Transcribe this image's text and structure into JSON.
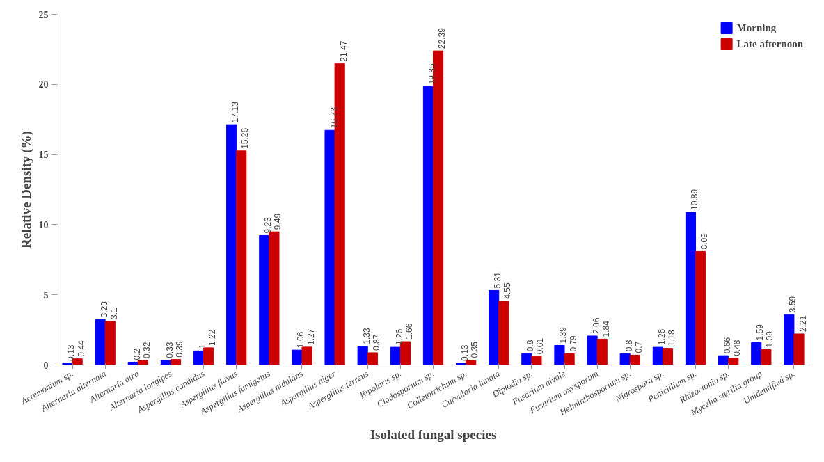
{
  "chart_data": {
    "type": "bar",
    "xlabel": "Isolated fungal species",
    "ylabel": "Relative Density (%)",
    "categories": [
      "Acremonium sp.",
      "Alternaria alternata",
      "Alternaria atra",
      "Alternaria longipes",
      "Aspergillus candidus",
      "Aspergillus flavus",
      "Aspergillus fumigatus",
      "Aspergillus nidulans",
      "Aspergillus niger",
      "Aspergillus terreus",
      "Bipolaris sp.",
      "Cladosporium sp.",
      "Colletotrichum sp.",
      "Curvularia lunata",
      "Diplodia sp.",
      "Fusarium nivale",
      "Fusarium oxysporum",
      "Helminthosporium sp.",
      "Nigrospora sp.",
      "Penicillium sp.",
      "Rhizoctonia sp.",
      "Mycelia sterilia group",
      "Unidentified sp."
    ],
    "series": [
      {
        "name": "Morning",
        "color": "#0000ff",
        "values": [
          0.13,
          3.23,
          0.2,
          0.33,
          1,
          17.13,
          9.23,
          1.06,
          16.73,
          1.33,
          1.26,
          19.85,
          0.13,
          5.31,
          0.8,
          1.39,
          2.06,
          0.8,
          1.26,
          10.89,
          0.66,
          1.59,
          3.59
        ]
      },
      {
        "name": "Late afternoon",
        "color": "#cc0000",
        "values": [
          0.44,
          3.1,
          0.32,
          0.39,
          1.22,
          15.26,
          9.49,
          1.27,
          21.47,
          0.87,
          1.66,
          22.39,
          0.35,
          4.55,
          0.61,
          0.79,
          1.84,
          0.7,
          1.18,
          8.09,
          0.48,
          1.09,
          2.21
        ]
      }
    ],
    "ylim": [
      0,
      25
    ],
    "yticks": [
      0,
      5,
      10,
      15,
      20,
      25
    ],
    "grid": false,
    "legend": "top right",
    "data_labels": true
  }
}
